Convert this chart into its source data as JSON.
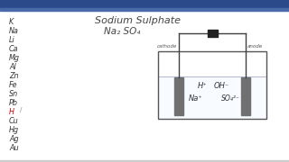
{
  "bg_color": "#ffffff",
  "taskbar_color": "#2a4a7a",
  "content_bg": "#ffffff",
  "title": "Sodium Sulphate",
  "formula": "Na₂ SO₄",
  "elements": [
    "K",
    "Na",
    "Li",
    "Ca",
    "Mg",
    "Al",
    "Zn",
    "Fe",
    "Sn",
    "Pb",
    "H",
    "Cu",
    "Hg",
    "Ag",
    "Au"
  ],
  "h_highlight": "#cc0000",
  "electrode_color": "#707070",
  "wire_color": "#404040",
  "battery_color": "#222222",
  "tank_color": "#555555",
  "liquid_color": "#f0f8ff",
  "text_color": "#333333",
  "ion_text_h": "H⁺",
  "ion_text_oh": "OH⁻",
  "ion_text_na": "Na⁺",
  "ion_text_so4": "SO₄²⁻",
  "cathode_label": "cathode",
  "anode_label": "anode",
  "pencil_color": "#888888"
}
